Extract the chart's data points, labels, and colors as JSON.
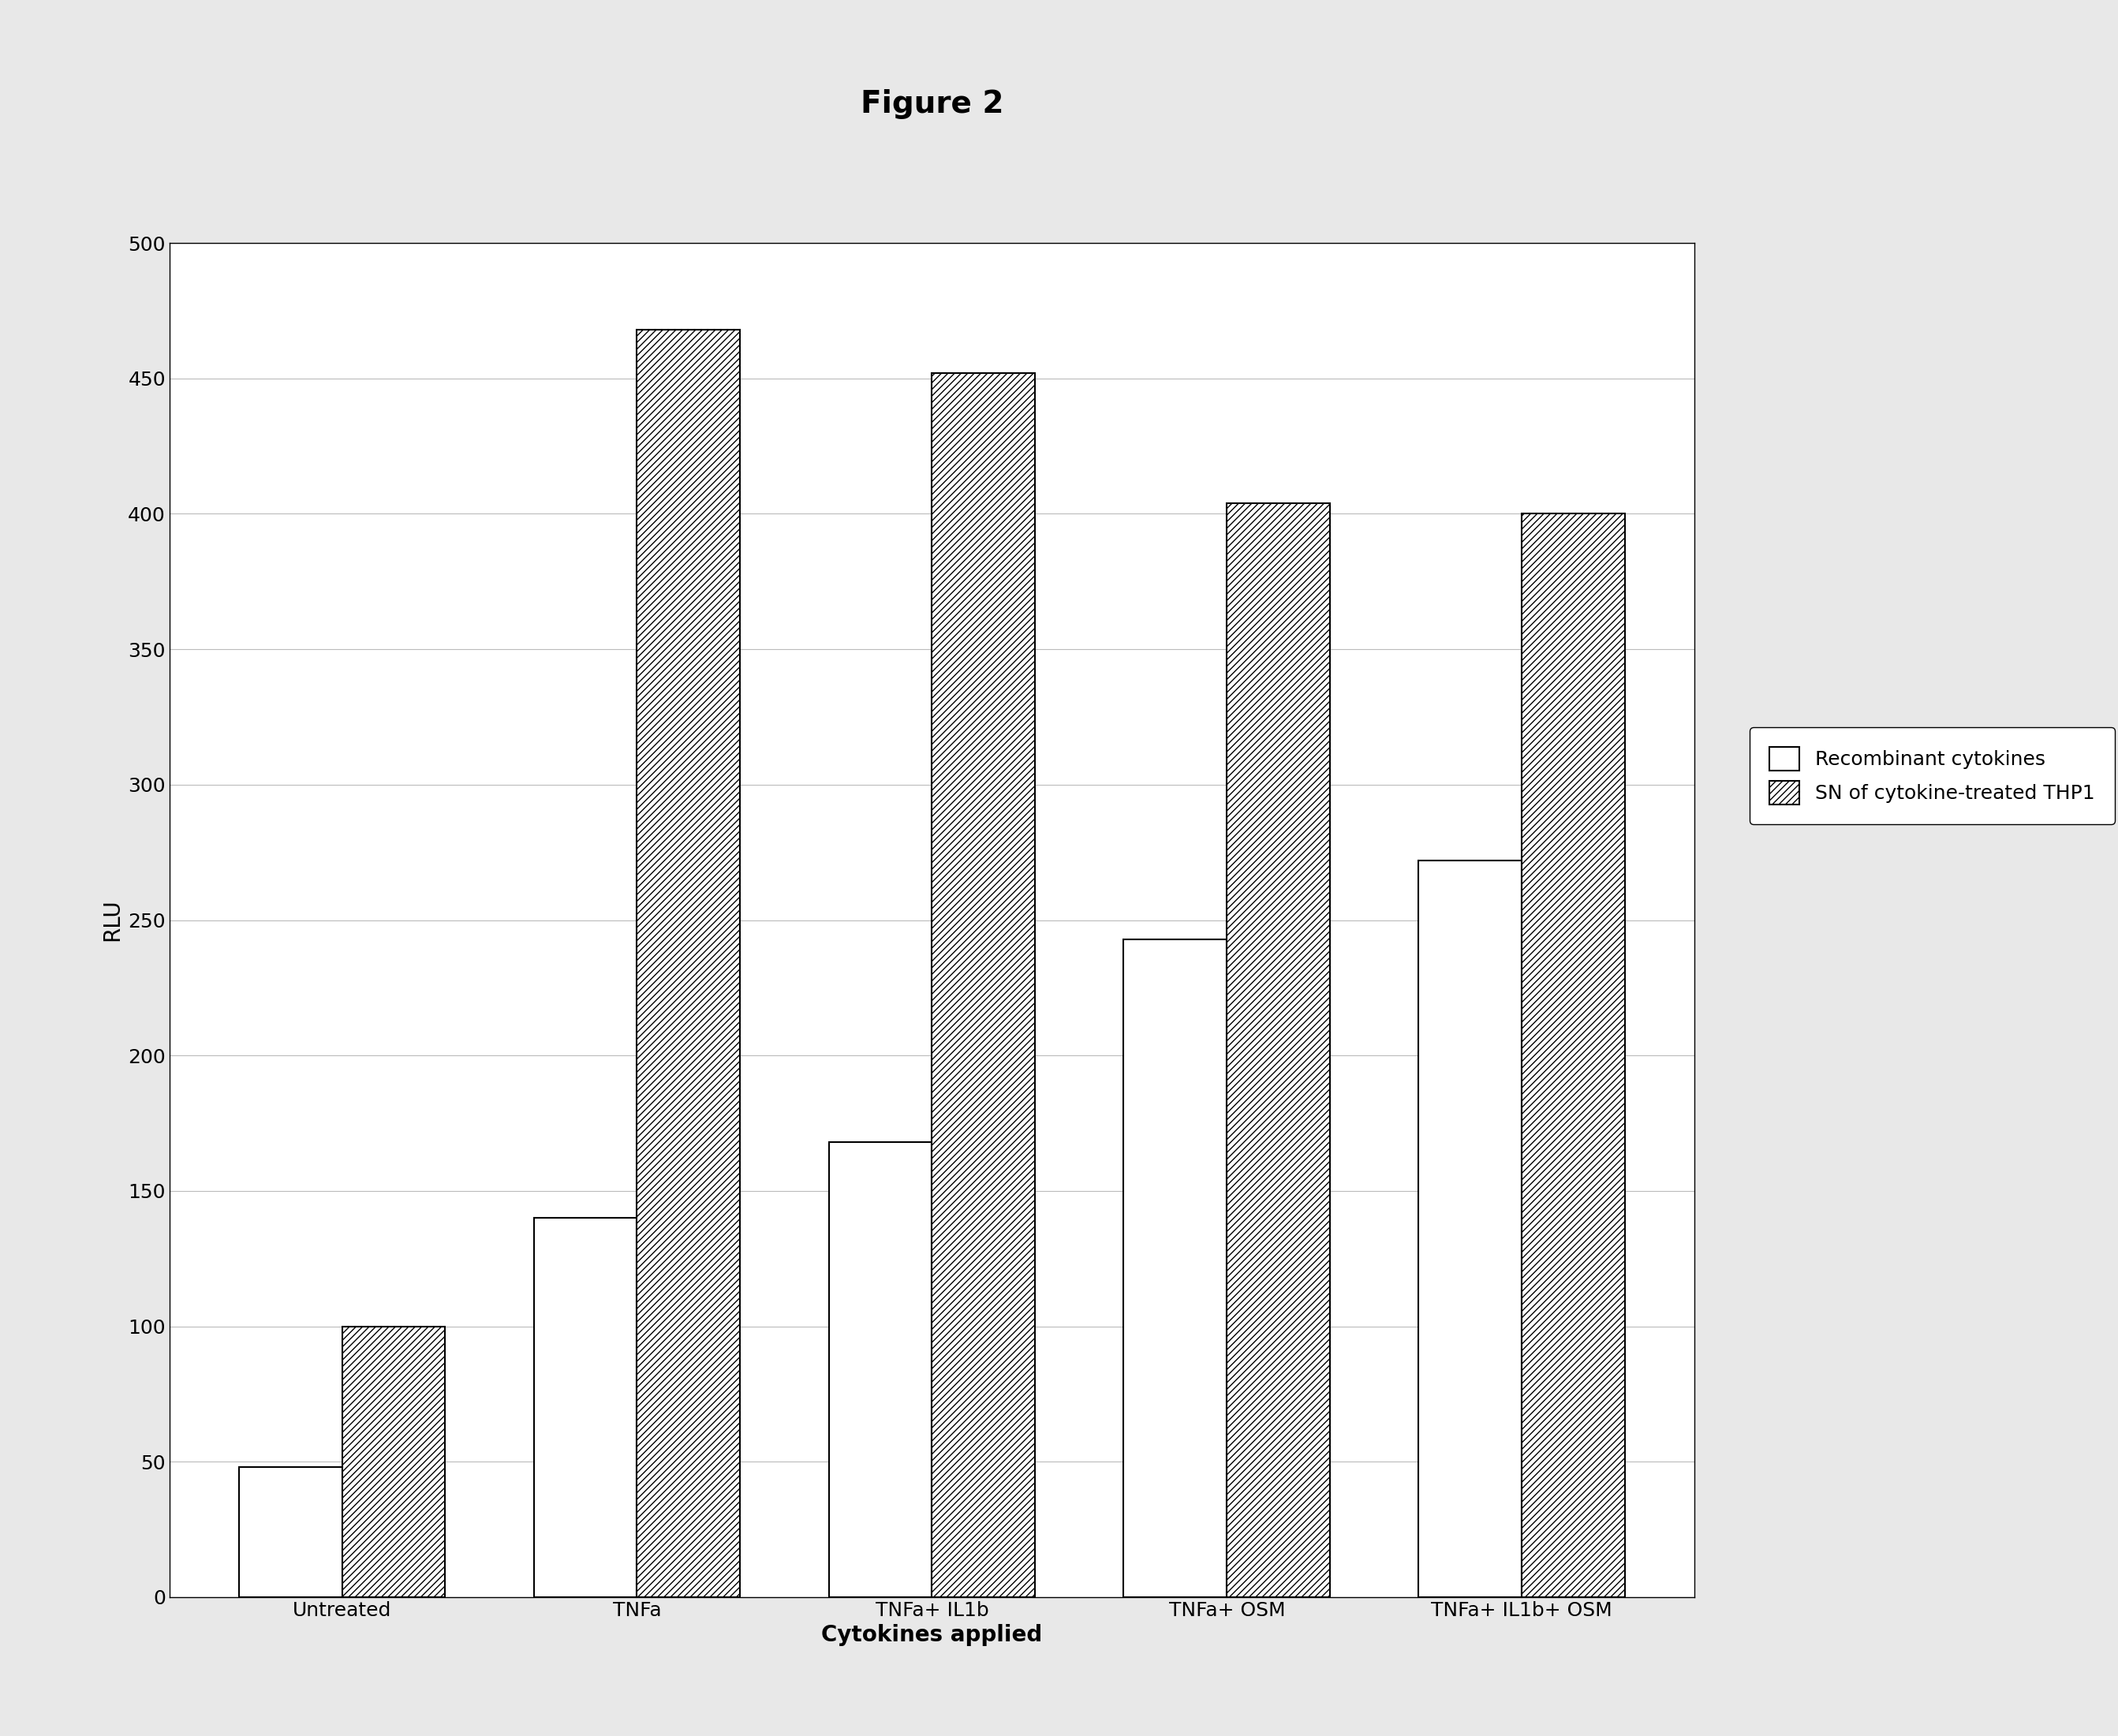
{
  "title": "Figure 2",
  "xlabel": "Cytokines applied",
  "ylabel": "RLU",
  "categories": [
    "Untreated",
    "TNFa",
    "TNFa+ IL1b",
    "TNFa+ OSM",
    "TNFa+ IL1b+ OSM"
  ],
  "recombinant": [
    48,
    140,
    168,
    243,
    272
  ],
  "sn_treated": [
    100,
    468,
    452,
    404,
    400
  ],
  "ylim": [
    0,
    500
  ],
  "yticks": [
    0,
    50,
    100,
    150,
    200,
    250,
    300,
    350,
    400,
    450,
    500
  ],
  "bar_width": 0.35,
  "recombinant_color": "#ffffff",
  "recombinant_edgecolor": "#000000",
  "sn_color": "#ffffff",
  "sn_edgecolor": "#000000",
  "hatch_sn": "////",
  "legend_labels": [
    "Recombinant cytokines",
    "SN of cytokine-treated THP1"
  ],
  "title_fontsize": 28,
  "axis_label_fontsize": 20,
  "tick_fontsize": 18,
  "legend_fontsize": 18,
  "background_color": "#ffffff",
  "outer_bg": "#e8e8e8"
}
